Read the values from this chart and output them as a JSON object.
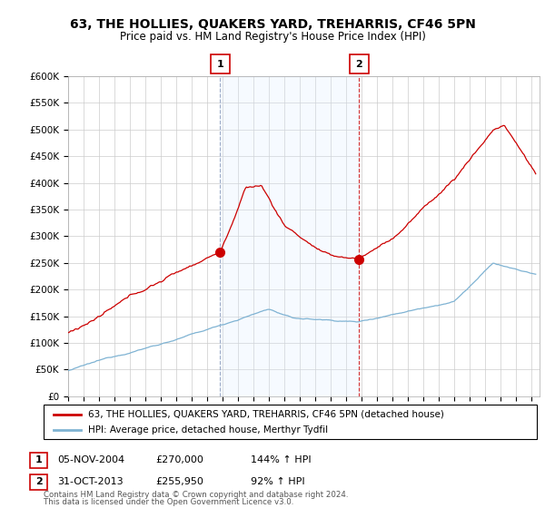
{
  "title": "63, THE HOLLIES, QUAKERS YARD, TREHARRIS, CF46 5PN",
  "subtitle": "Price paid vs. HM Land Registry's House Price Index (HPI)",
  "title_fontsize": 10,
  "subtitle_fontsize": 8.5,
  "ylim": [
    0,
    600000
  ],
  "yticks": [
    0,
    50000,
    100000,
    150000,
    200000,
    250000,
    300000,
    350000,
    400000,
    450000,
    500000,
    550000,
    600000
  ],
  "ytick_labels": [
    "£0",
    "£50K",
    "£100K",
    "£150K",
    "£200K",
    "£250K",
    "£300K",
    "£350K",
    "£400K",
    "£450K",
    "£500K",
    "£550K",
    "£600K"
  ],
  "xlim_start": 1995.0,
  "xlim_end": 2025.5,
  "sale1_x": 2004.84,
  "sale1_y": 270000,
  "sale1_label": "1",
  "sale2_x": 2013.83,
  "sale2_y": 255950,
  "sale2_label": "2",
  "legend_line1": "63, THE HOLLIES, QUAKERS YARD, TREHARRIS, CF46 5PN (detached house)",
  "legend_line2": "HPI: Average price, detached house, Merthyr Tydfil",
  "line_red_color": "#cc0000",
  "line_blue_color": "#7fb3d3",
  "shade_color": "#ddeeff",
  "annot1_date": "05-NOV-2004",
  "annot1_price": "£270,000",
  "annot1_hpi": "144% ↑ HPI",
  "annot2_date": "31-OCT-2013",
  "annot2_price": "£255,950",
  "annot2_hpi": "92% ↑ HPI",
  "footer1": "Contains HM Land Registry data © Crown copyright and database right 2024.",
  "footer2": "This data is licensed under the Open Government Licence v3.0.",
  "bg_color": "#ffffff",
  "plot_bg_color": "#ffffff",
  "grid_color": "#cccccc"
}
